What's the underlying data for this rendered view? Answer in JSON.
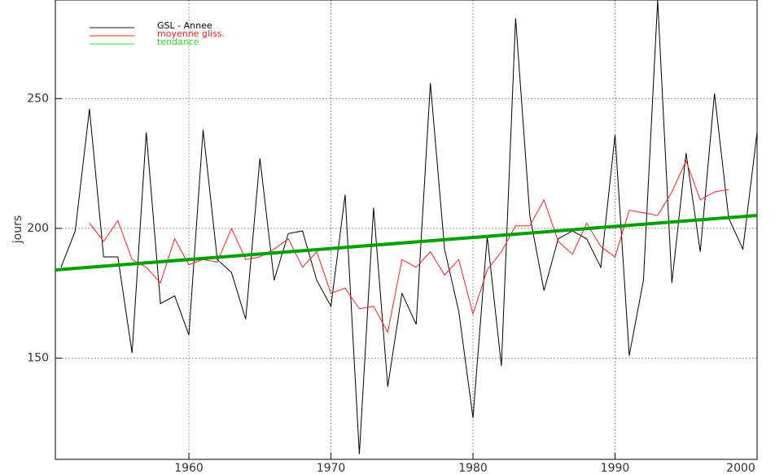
{
  "chart_data": {
    "type": "line",
    "y_label": "jours",
    "x": [
      1951,
      1952,
      1953,
      1954,
      1955,
      1956,
      1957,
      1958,
      1959,
      1960,
      1961,
      1962,
      1963,
      1964,
      1965,
      1966,
      1967,
      1968,
      1969,
      1970,
      1971,
      1972,
      1973,
      1974,
      1975,
      1976,
      1977,
      1978,
      1979,
      1980,
      1981,
      1982,
      1983,
      1984,
      1985,
      1986,
      1987,
      1988,
      1989,
      1990,
      1991,
      1992,
      1993,
      1994,
      1995,
      1996,
      1997,
      1998,
      1999,
      2000
    ],
    "series": [
      {
        "name": "GSL - Annee",
        "color": "#000000",
        "legend_color": "#888888",
        "width": 1,
        "values": [
          185,
          199,
          246,
          189,
          189,
          152,
          237,
          171,
          174,
          159,
          238,
          188,
          183,
          165,
          227,
          180,
          198,
          199,
          180,
          170,
          213,
          113,
          208,
          139,
          175,
          163,
          256,
          192,
          168,
          127,
          197,
          147,
          281,
          205,
          176,
          196,
          199,
          196,
          185,
          236,
          151,
          180,
          288,
          179,
          229,
          191,
          252,
          204,
          192,
          237
        ]
      },
      {
        "name": "moyenne gliss.",
        "color": "#ff2020",
        "width": 1,
        "values": [
          null,
          null,
          202,
          195,
          203,
          188,
          185,
          179,
          196,
          186,
          188,
          187,
          200,
          188,
          189,
          192,
          196,
          185,
          191,
          175,
          177,
          169,
          170,
          160,
          188,
          185,
          191,
          182,
          188,
          167,
          184,
          191,
          201,
          201,
          211,
          195,
          190,
          202,
          193,
          189,
          207,
          206,
          205,
          214,
          226,
          211,
          214,
          215,
          null,
          null
        ]
      },
      {
        "name": "tendance",
        "color": "#00a000",
        "legend_color": "#30e030",
        "width": 4,
        "x": [
          1950.6,
          2000
        ],
        "values": [
          184,
          205
        ]
      }
    ],
    "xlim": [
      1950.6,
      2000
    ],
    "xticks": [
      1960,
      1970,
      1980,
      1990,
      2000
    ],
    "ylim": [
      111,
      288
    ],
    "yticks": [
      150,
      200,
      250
    ],
    "grid": true,
    "legend": "upper left"
  }
}
